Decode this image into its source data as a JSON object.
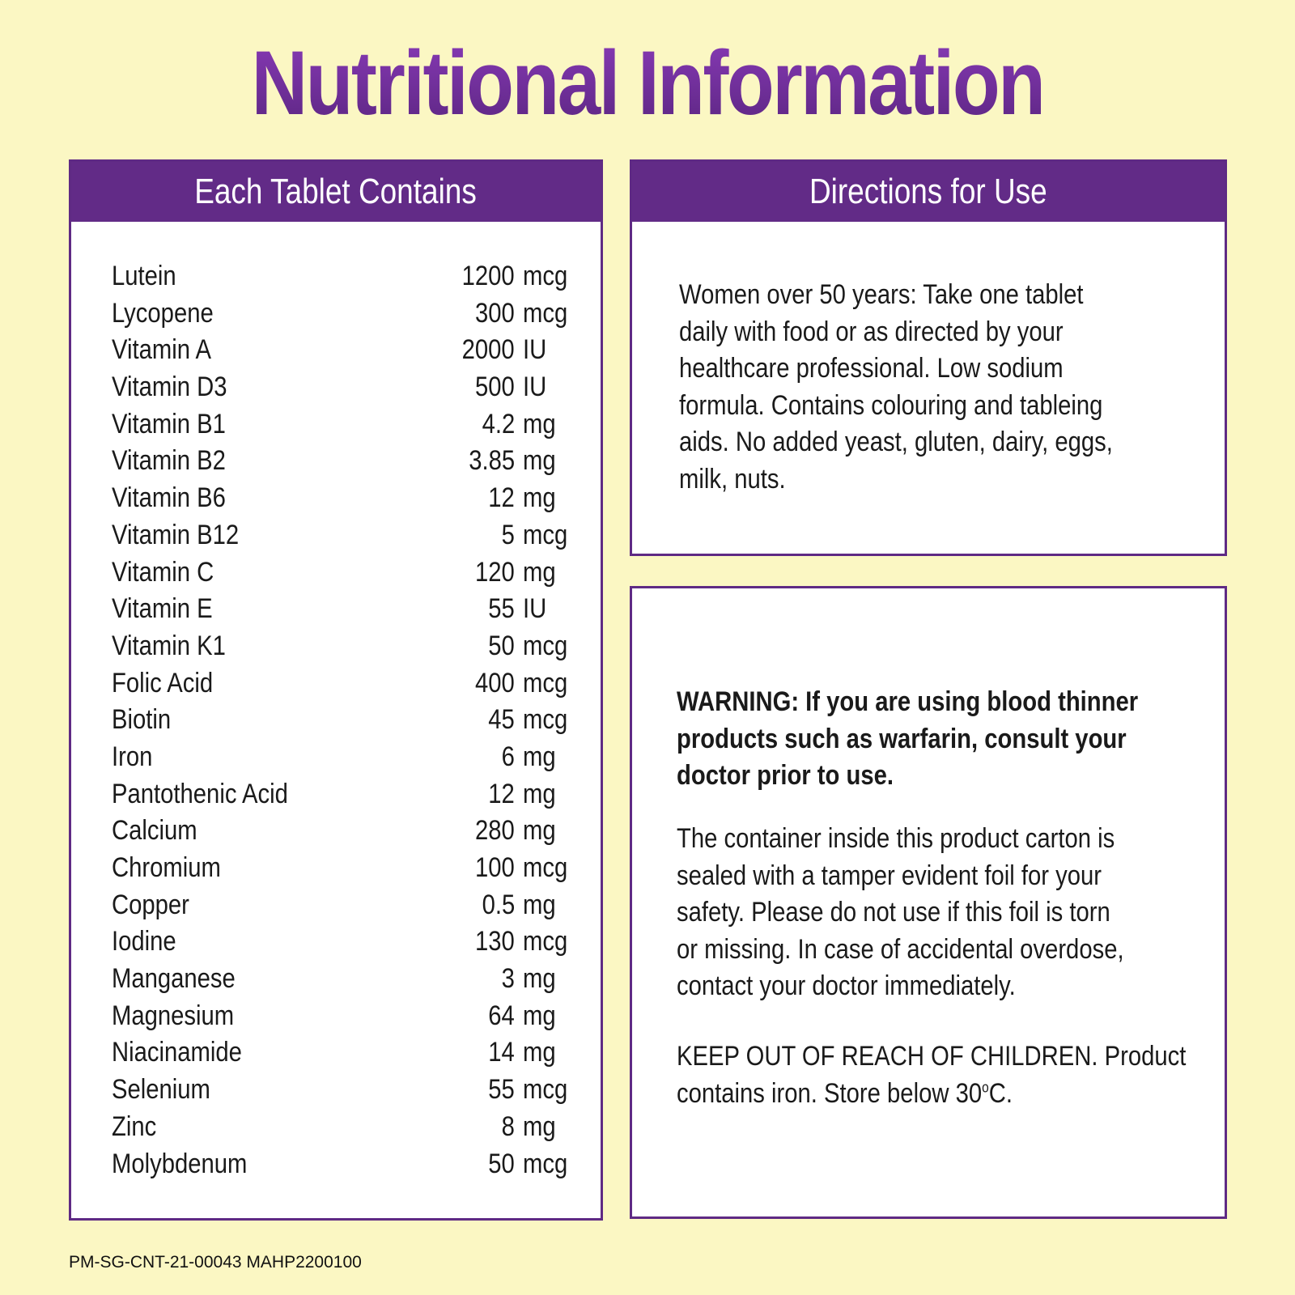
{
  "title": "Nutritional Information",
  "left_panel": {
    "header": "Each Tablet Contains",
    "nutrients": [
      {
        "name": "Lutein",
        "amount": "1200",
        "unit": "mcg"
      },
      {
        "name": "Lycopene",
        "amount": "300",
        "unit": "mcg"
      },
      {
        "name": "Vitamin A",
        "amount": "2000",
        "unit": "IU"
      },
      {
        "name": "Vitamin D3",
        "amount": "500",
        "unit": "IU"
      },
      {
        "name": "Vitamin B1",
        "amount": "4.2",
        "unit": "mg"
      },
      {
        "name": "Vitamin B2",
        "amount": "3.85",
        "unit": "mg"
      },
      {
        "name": "Vitamin B6",
        "amount": "12",
        "unit": "mg"
      },
      {
        "name": "Vitamin B12",
        "amount": "5",
        "unit": "mcg"
      },
      {
        "name": "Vitamin C",
        "amount": "120",
        "unit": "mg"
      },
      {
        "name": "Vitamin E",
        "amount": "55",
        "unit": "IU"
      },
      {
        "name": "Vitamin K1",
        "amount": "50",
        "unit": "mcg"
      },
      {
        "name": "Folic Acid",
        "amount": "400",
        "unit": "mcg"
      },
      {
        "name": "Biotin",
        "amount": "45",
        "unit": "mcg"
      },
      {
        "name": "Iron",
        "amount": "6",
        "unit": "mg"
      },
      {
        "name": "Pantothenic Acid",
        "amount": "12",
        "unit": "mg"
      },
      {
        "name": "Calcium",
        "amount": "280",
        "unit": "mg"
      },
      {
        "name": "Chromium",
        "amount": "100",
        "unit": "mcg"
      },
      {
        "name": "Copper",
        "amount": "0.5",
        "unit": "mg"
      },
      {
        "name": "Iodine",
        "amount": "130",
        "unit": "mcg"
      },
      {
        "name": "Manganese",
        "amount": "3",
        "unit": "mg"
      },
      {
        "name": "Magnesium",
        "amount": "64",
        "unit": "mg"
      },
      {
        "name": "Niacinamide",
        "amount": "14",
        "unit": "mg"
      },
      {
        "name": "Selenium",
        "amount": "55",
        "unit": "mcg"
      },
      {
        "name": "Zinc",
        "amount": "8",
        "unit": "mg"
      },
      {
        "name": "Molybdenum",
        "amount": "50",
        "unit": "mcg"
      }
    ]
  },
  "directions_panel": {
    "header": "Directions for Use",
    "lines": [
      "Women over 50 years: Take one tablet",
      "daily with food or as directed by your",
      "healthcare professional. Low sodium",
      "formula. Contains colouring and tableing",
      "aids. No added yeast, gluten, dairy, eggs,",
      "milk, nuts."
    ]
  },
  "warning_panel": {
    "warning_lines": [
      "WARNING: If you are using blood thinner",
      "products such as warfarin, consult your",
      "doctor prior to use."
    ],
    "seal_lines": [
      "The container inside this product carton is",
      "sealed with a tamper evident foil for your",
      "safety. Please do not use if this foil is torn",
      "or missing. In case of accidental overdose,",
      "contact your doctor immediately."
    ],
    "keep_line1": "KEEP OUT OF REACH OF CHILDREN. Product",
    "keep_line2_prefix": "contains iron. Store below 30",
    "keep_degree": "o",
    "keep_line2_suffix": "C."
  },
  "footer_code": "PM-SG-CNT-21-00043 MAHP2200100",
  "colors": {
    "background": "#fbf7c3",
    "header_purple": "#622b87",
    "title_purple": "#6b2c91",
    "text": "#1a1a1a"
  }
}
